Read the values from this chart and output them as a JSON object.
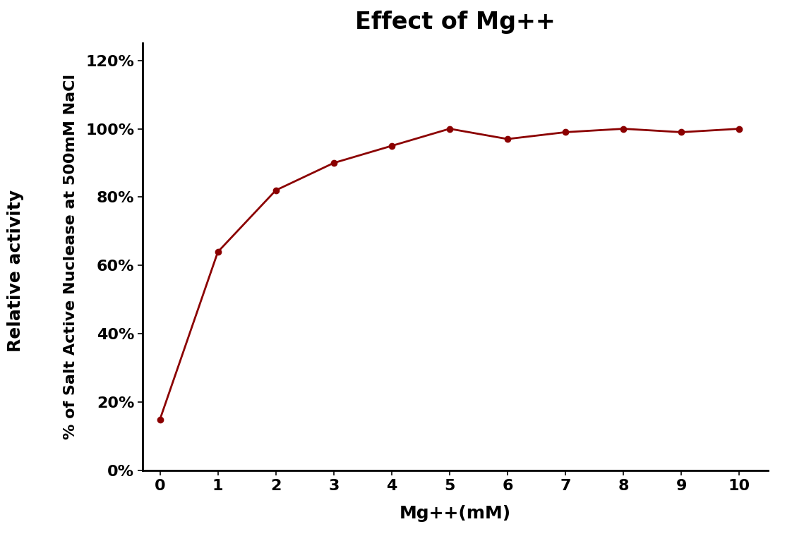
{
  "title": "Effect of Mg++",
  "xlabel": "Mg++(mM)",
  "ylabel_outer": "Relative activity",
  "ylabel_inner": "% of Salt Active Nuclease at 500mM NaCl",
  "x": [
    0,
    1,
    2,
    3,
    4,
    5,
    6,
    7,
    8,
    9,
    10
  ],
  "y": [
    0.15,
    0.64,
    0.82,
    0.9,
    0.95,
    1.0,
    0.97,
    0.99,
    1.0,
    0.99,
    1.0
  ],
  "line_color": "#8B0000",
  "marker": "o",
  "marker_size": 6,
  "line_width": 2.0,
  "xlim": [
    -0.3,
    10.5
  ],
  "ylim": [
    0,
    1.25
  ],
  "yticks": [
    0.0,
    0.2,
    0.4,
    0.6,
    0.8,
    1.0,
    1.2
  ],
  "xticks": [
    0,
    1,
    2,
    3,
    4,
    5,
    6,
    7,
    8,
    9,
    10
  ],
  "background_color": "#ffffff",
  "title_fontsize": 24,
  "outer_ylabel_fontsize": 18,
  "inner_ylabel_fontsize": 16,
  "xlabel_fontsize": 18,
  "tick_fontsize": 16
}
